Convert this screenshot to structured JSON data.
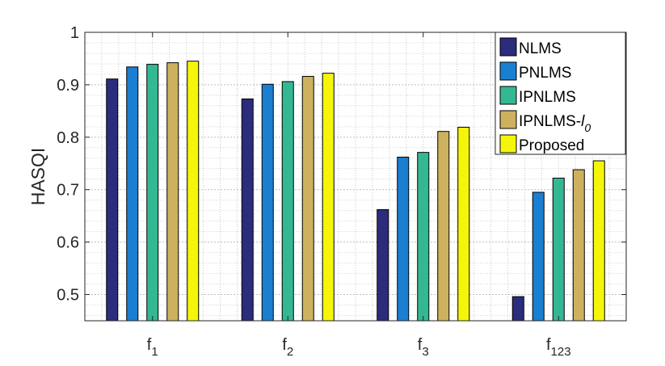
{
  "chart_data": {
    "type": "bar",
    "categories": [
      {
        "base": "f",
        "sub": "1"
      },
      {
        "base": "f",
        "sub": "2"
      },
      {
        "base": "f",
        "sub": "3"
      },
      {
        "base": "f",
        "sub": "123"
      }
    ],
    "series": [
      {
        "name": "NLMS",
        "color": "#2c2c7c",
        "values": [
          0.911,
          0.873,
          0.662,
          0.496
        ]
      },
      {
        "name": "PNLMS",
        "color": "#1a7fd1",
        "values": [
          0.934,
          0.901,
          0.762,
          0.695
        ]
      },
      {
        "name": "IPNLMS",
        "color": "#33b893",
        "values": [
          0.939,
          0.906,
          0.771,
          0.722
        ]
      },
      {
        "name": "IPNLMS-l",
        "name_sub": "0",
        "color": "#cdb15f",
        "values": [
          0.942,
          0.916,
          0.811,
          0.738
        ]
      },
      {
        "name": "Proposed",
        "color": "#f5f50a",
        "values": [
          0.945,
          0.922,
          0.819,
          0.755
        ]
      }
    ],
    "xlabel": "",
    "ylabel": "HASQI",
    "ylim": [
      0.45,
      1.0
    ],
    "yticks": [
      "0.5",
      "0.6",
      "0.7",
      "0.8",
      "0.9",
      "1"
    ],
    "ytick_values": [
      0.5,
      0.6,
      0.7,
      0.8,
      0.9,
      1.0
    ],
    "grid": true,
    "legend_position": "top-right"
  }
}
